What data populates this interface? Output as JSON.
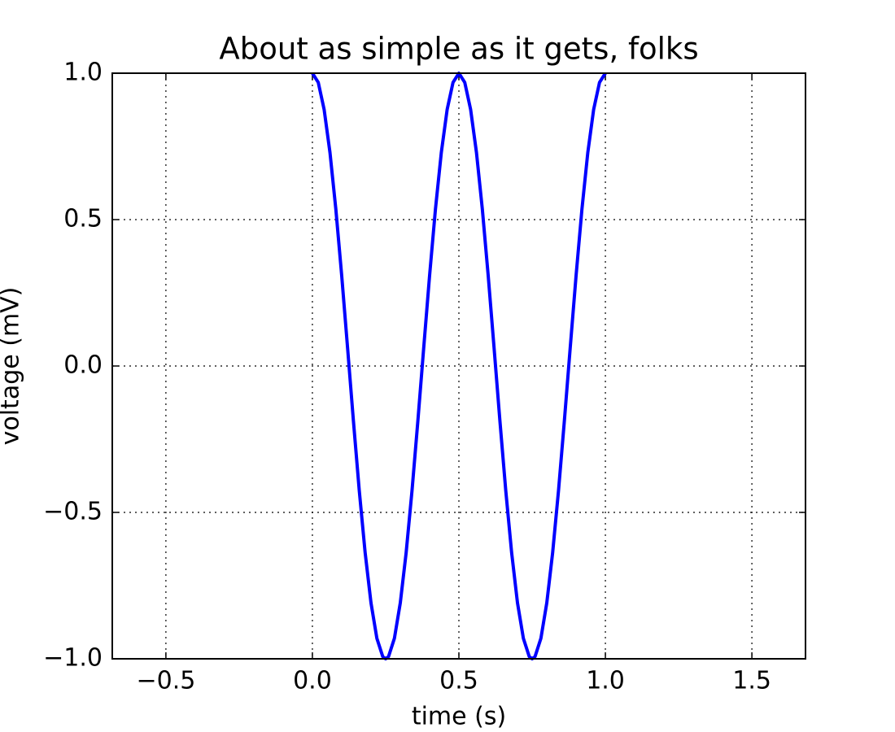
{
  "chart_data": {
    "type": "line",
    "title": "About as simple as it gets, folks",
    "x_label": "time (s)",
    "y_label": "voltage (mV)",
    "x": [
      0,
      0.02,
      0.04,
      0.06,
      0.08,
      0.1,
      0.12,
      0.14,
      0.16,
      0.18,
      0.2,
      0.22,
      0.24,
      0.25,
      0.26,
      0.28,
      0.3,
      0.32,
      0.34,
      0.36,
      0.38,
      0.4,
      0.42,
      0.44,
      0.46,
      0.48,
      0.5,
      0.52,
      0.54,
      0.56,
      0.58,
      0.6,
      0.62,
      0.64,
      0.66,
      0.68,
      0.7,
      0.72,
      0.74,
      0.75,
      0.76,
      0.78,
      0.8,
      0.82,
      0.84,
      0.86,
      0.88,
      0.9,
      0.92,
      0.94,
      0.96,
      0.98,
      1.0
    ],
    "series": [
      {
        "color": "#0000ff",
        "values": [
          1,
          0.9686,
          0.8763,
          0.729,
          0.5358,
          0.309,
          0.0628,
          -0.1874,
          -0.4258,
          -0.6374,
          -0.809,
          -0.9298,
          -0.9921,
          -1,
          -0.9921,
          -0.9298,
          -0.809,
          -0.6374,
          -0.4258,
          -0.1874,
          0.0628,
          0.309,
          0.5358,
          0.729,
          0.8763,
          0.9686,
          1,
          0.9686,
          0.8763,
          0.729,
          0.5358,
          0.309,
          0.0628,
          -0.1874,
          -0.4258,
          -0.6374,
          -0.809,
          -0.9298,
          -0.9921,
          -1,
          -0.9921,
          -0.9298,
          -0.809,
          -0.6374,
          -0.4258,
          -0.1874,
          0.0628,
          0.309,
          0.5358,
          0.729,
          0.8763,
          0.9686,
          1
        ]
      }
    ],
    "xlim": [
      -0.683,
      1.683
    ],
    "ylim": [
      -1,
      1
    ],
    "xticks": [
      {
        "value": -0.5,
        "label": "−0.5"
      },
      {
        "value": 0,
        "label": "0.0"
      },
      {
        "value": 0.5,
        "label": "0.5"
      },
      {
        "value": 1,
        "label": "1.0"
      },
      {
        "value": 1.5,
        "label": "1.5"
      }
    ],
    "yticks": [
      {
        "value": -1,
        "label": "−1.0"
      },
      {
        "value": -0.5,
        "label": "−0.5"
      },
      {
        "value": 0,
        "label": "0.0"
      },
      {
        "value": 0.5,
        "label": "0.5"
      },
      {
        "value": 1,
        "label": "1.0"
      }
    ],
    "grid": true
  }
}
